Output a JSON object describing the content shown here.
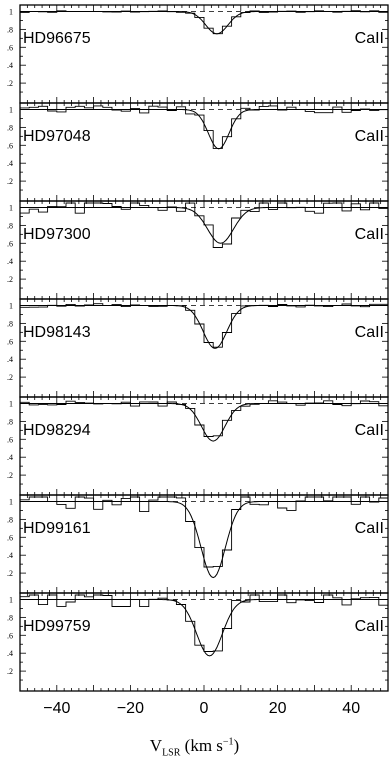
{
  "chart_data": {
    "type": "line",
    "xlabel_main": "V",
    "xlabel_sub": "LSR",
    "xlabel_unit_pre": " (km s",
    "xlabel_unit_sup": "−1",
    "xlabel_unit_post": ")",
    "xlim": [
      -50,
      50
    ],
    "x_ticks": [
      -40,
      -20,
      0,
      20,
      40
    ],
    "ylim": [
      0,
      1.05
    ],
    "y_tick_labels": [
      "1",
      ".8",
      ".6",
      ".4",
      ".2"
    ],
    "y_tick_values": [
      1,
      0.8,
      0.6,
      0.4,
      0.2
    ],
    "continuum": 1.0,
    "panels": [
      {
        "star": "HD96675",
        "ion": "CaII",
        "center": 3.5,
        "depth": 0.25,
        "width": 3.0,
        "noise": 0.005
      },
      {
        "star": "HD97048",
        "ion": "CaII",
        "center": 4.0,
        "depth": 0.44,
        "width": 2.8,
        "noise": 0.02
      },
      {
        "star": "HD97300",
        "ion": "CaII",
        "center": 4.5,
        "depth": 0.4,
        "width": 3.5,
        "noise": 0.04
      },
      {
        "star": "HD98143",
        "ion": "CaII",
        "center": 3.0,
        "depth": 0.48,
        "width": 3.2,
        "noise": 0.01
      },
      {
        "star": "HD98294",
        "ion": "CaII",
        "center": 2.5,
        "depth": 0.42,
        "width": 3.2,
        "noise": 0.015
      },
      {
        "star": "HD99161",
        "ion": "CaII",
        "center": 2.5,
        "depth": 0.85,
        "width": 3.3,
        "noise": 0.06
      },
      {
        "star": "HD99759",
        "ion": "CaII",
        "center": 1.5,
        "depth": 0.63,
        "width": 3.5,
        "noise": 0.04
      }
    ]
  }
}
